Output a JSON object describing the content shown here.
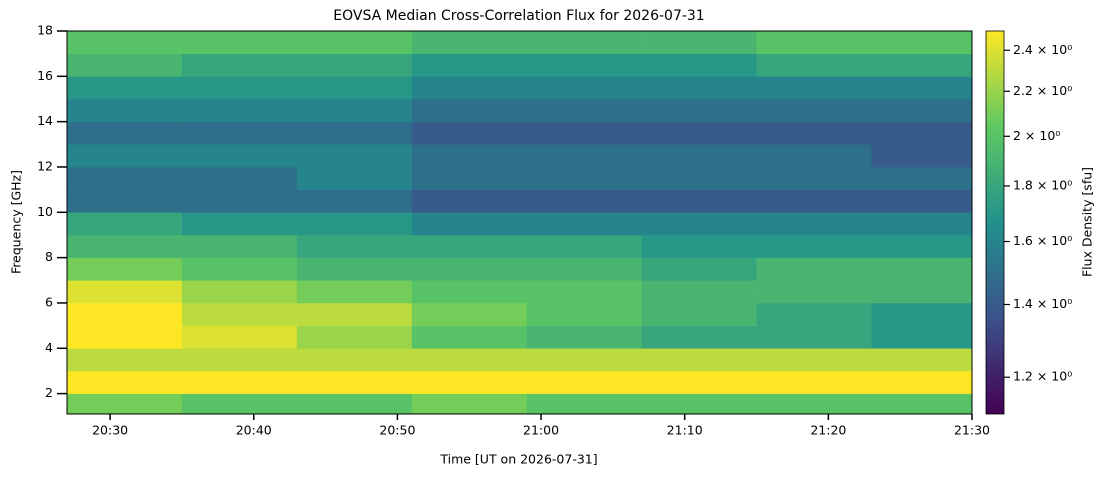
{
  "chart_data": {
    "type": "heatmap",
    "title": "EOVSA Median Cross-Correlation Flux for 2026-07-31",
    "x_label": "Time [UT on 2026-07-31]",
    "y_label": "Frequency [GHz]",
    "colorbar_label": "Flux Density [sfu]",
    "xlim": [
      "20:27",
      "21:30"
    ],
    "xticks": [
      "20:30",
      "20:40",
      "20:50",
      "21:00",
      "21:10",
      "21:20",
      "21:30"
    ],
    "ylim": [
      1.1,
      18
    ],
    "yticks": [
      2,
      4,
      6,
      8,
      10,
      12,
      14,
      16,
      18
    ],
    "x_edges": [
      "20:27",
      "20:35",
      "20:43",
      "20:51",
      "20:59",
      "21:07",
      "21:15",
      "21:23",
      "21:30"
    ],
    "y_edges": [
      1.1,
      2,
      2.6,
      3,
      4,
      5,
      6,
      7,
      8,
      9,
      10,
      11,
      12,
      13,
      14,
      15,
      16,
      17,
      18
    ],
    "values": [
      [
        2.1,
        2.0,
        2.0,
        2.1,
        2.0,
        2.0,
        2.0,
        2.0
      ],
      [
        2.5,
        2.5,
        2.5,
        2.5,
        2.5,
        2.5,
        2.5,
        2.5
      ],
      [
        2.5,
        2.5,
        2.5,
        2.5,
        2.5,
        2.5,
        2.5,
        2.5
      ],
      [
        2.3,
        2.3,
        2.3,
        2.3,
        2.3,
        2.3,
        2.3,
        2.3
      ],
      [
        2.5,
        2.4,
        2.2,
        2.0,
        1.9,
        1.8,
        1.8,
        1.7
      ],
      [
        2.5,
        2.3,
        2.3,
        2.1,
        2.0,
        1.9,
        1.8,
        1.7
      ],
      [
        2.4,
        2.2,
        2.1,
        2.0,
        2.0,
        1.9,
        1.9,
        1.9
      ],
      [
        2.1,
        2.0,
        1.9,
        1.9,
        1.9,
        1.8,
        1.9,
        1.9
      ],
      [
        1.9,
        1.9,
        1.8,
        1.8,
        1.8,
        1.7,
        1.7,
        1.7
      ],
      [
        1.8,
        1.7,
        1.7,
        1.6,
        1.6,
        1.6,
        1.6,
        1.6
      ],
      [
        1.5,
        1.5,
        1.5,
        1.4,
        1.4,
        1.4,
        1.4,
        1.4
      ],
      [
        1.5,
        1.5,
        1.6,
        1.5,
        1.5,
        1.5,
        1.5,
        1.5
      ],
      [
        1.6,
        1.6,
        1.6,
        1.5,
        1.5,
        1.5,
        1.5,
        1.4
      ],
      [
        1.5,
        1.5,
        1.5,
        1.4,
        1.4,
        1.4,
        1.4,
        1.4
      ],
      [
        1.6,
        1.6,
        1.6,
        1.5,
        1.5,
        1.5,
        1.5,
        1.5
      ],
      [
        1.7,
        1.7,
        1.7,
        1.6,
        1.6,
        1.6,
        1.6,
        1.6
      ],
      [
        1.9,
        1.8,
        1.8,
        1.7,
        1.7,
        1.7,
        1.8,
        1.8
      ],
      [
        2.0,
        2.0,
        2.0,
        1.9,
        1.9,
        1.9,
        2.0,
        2.0
      ]
    ],
    "colormap": [
      "#440154",
      "#3b528b",
      "#21918c",
      "#5ec962",
      "#fde725"
    ],
    "color_scale": "log",
    "clim": [
      1.11,
      2.5
    ],
    "cticks": [
      {
        "value": 1.2,
        "label": "1.2 × 10⁰"
      },
      {
        "value": 1.4,
        "label": "1.4 × 10⁰"
      },
      {
        "value": 1.6,
        "label": "1.6 × 10⁰"
      },
      {
        "value": 1.8,
        "label": "1.8 × 10⁰"
      },
      {
        "value": 2,
        "label": "2 × 10⁰"
      },
      {
        "value": 2.2,
        "label": "2.2 × 10⁰"
      },
      {
        "value": 2.4,
        "label": "2.4 × 10⁰"
      }
    ]
  }
}
